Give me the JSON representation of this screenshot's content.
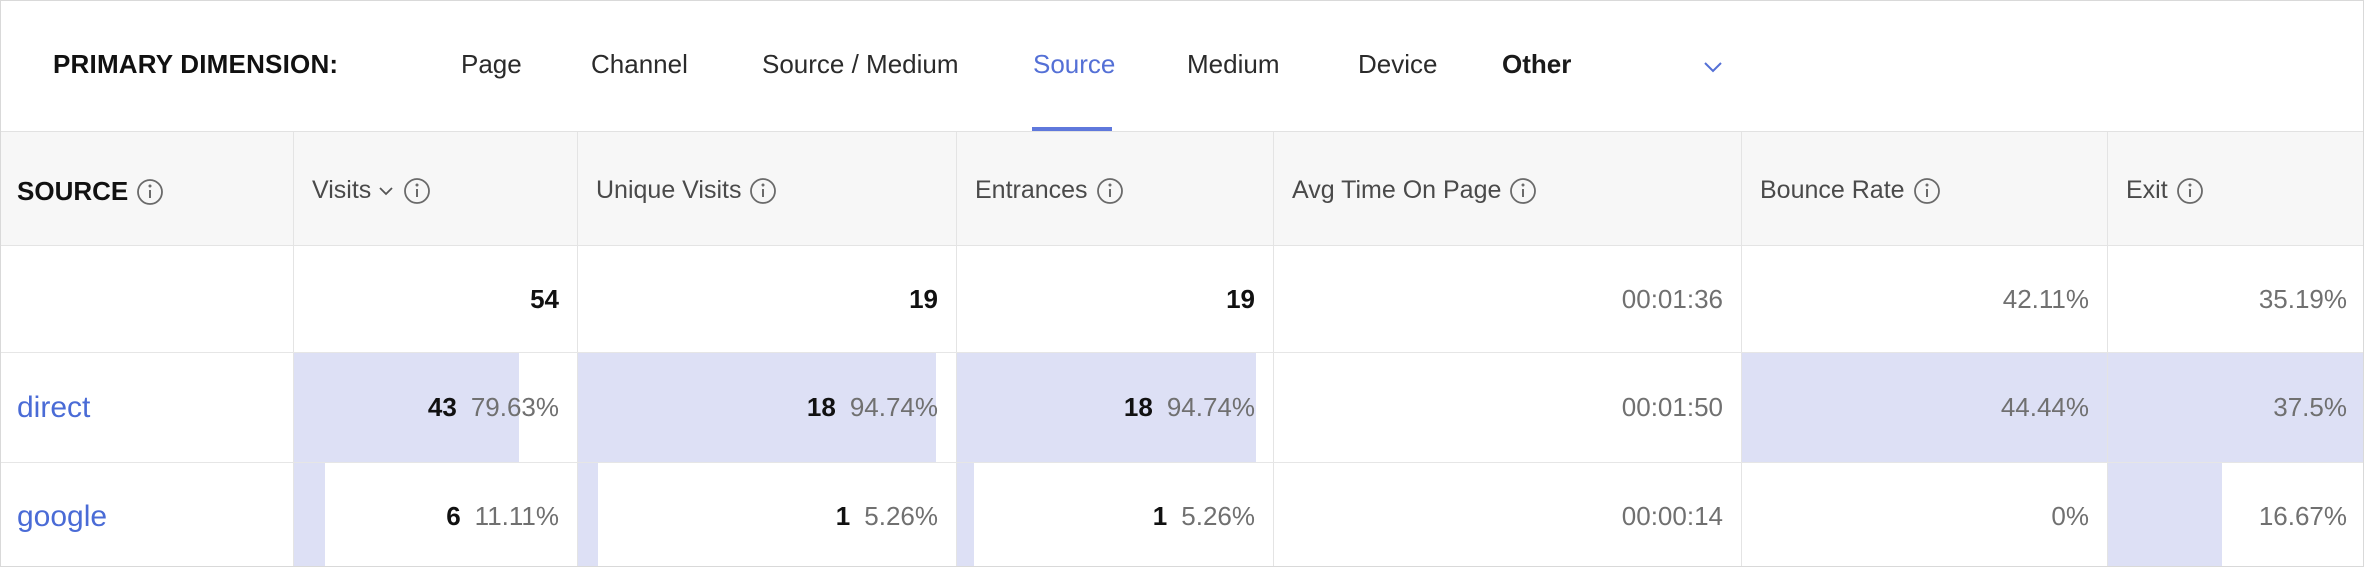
{
  "dimension": {
    "label": "PRIMARY DIMENSION:",
    "tabs": [
      {
        "label": "Page"
      },
      {
        "label": "Channel"
      },
      {
        "label": "Source / Medium"
      },
      {
        "label": "Source",
        "active": true
      },
      {
        "label": "Medium"
      },
      {
        "label": "Device"
      },
      {
        "label": "Other"
      }
    ]
  },
  "table": {
    "headers": {
      "source": "SOURCE",
      "visits": "Visits",
      "unique_visits": "Unique Visits",
      "entrances": "Entrances",
      "avg_time": "Avg Time On Page",
      "bounce_rate": "Bounce Rate",
      "exit": "Exit"
    },
    "totals": {
      "visits": "54",
      "unique_visits": "19",
      "entrances": "19",
      "avg_time": "00:01:36",
      "bounce_rate": "42.11%",
      "exit": "35.19%"
    },
    "rows": [
      {
        "source": "direct",
        "visits": "43",
        "visits_pct": "79.63%",
        "visits_frac": 0.7963,
        "unique_visits": "18",
        "unique_pct": "94.74%",
        "unique_frac": 0.9474,
        "entrances": "18",
        "entrances_pct": "94.74%",
        "entrances_frac": 0.9474,
        "avg_time": "00:01:50",
        "bounce_rate": "44.44%",
        "bounce_frac": 1.0,
        "exit": "37.5%",
        "exit_frac": 1.0
      },
      {
        "source": "google",
        "visits": "6",
        "visits_pct": "11.11%",
        "visits_frac": 0.1111,
        "unique_visits": "1",
        "unique_pct": "5.26%",
        "unique_frac": 0.0526,
        "entrances": "1",
        "entrances_pct": "5.26%",
        "entrances_frac": 0.0526,
        "avg_time": "00:00:14",
        "bounce_rate": "0%",
        "bounce_frac": 0,
        "exit": "16.67%",
        "exit_frac": 0.444
      }
    ]
  },
  "colors": {
    "accent": "#5470d6",
    "bar_fill": "#dde0f5",
    "link": "#4a6bd6"
  }
}
